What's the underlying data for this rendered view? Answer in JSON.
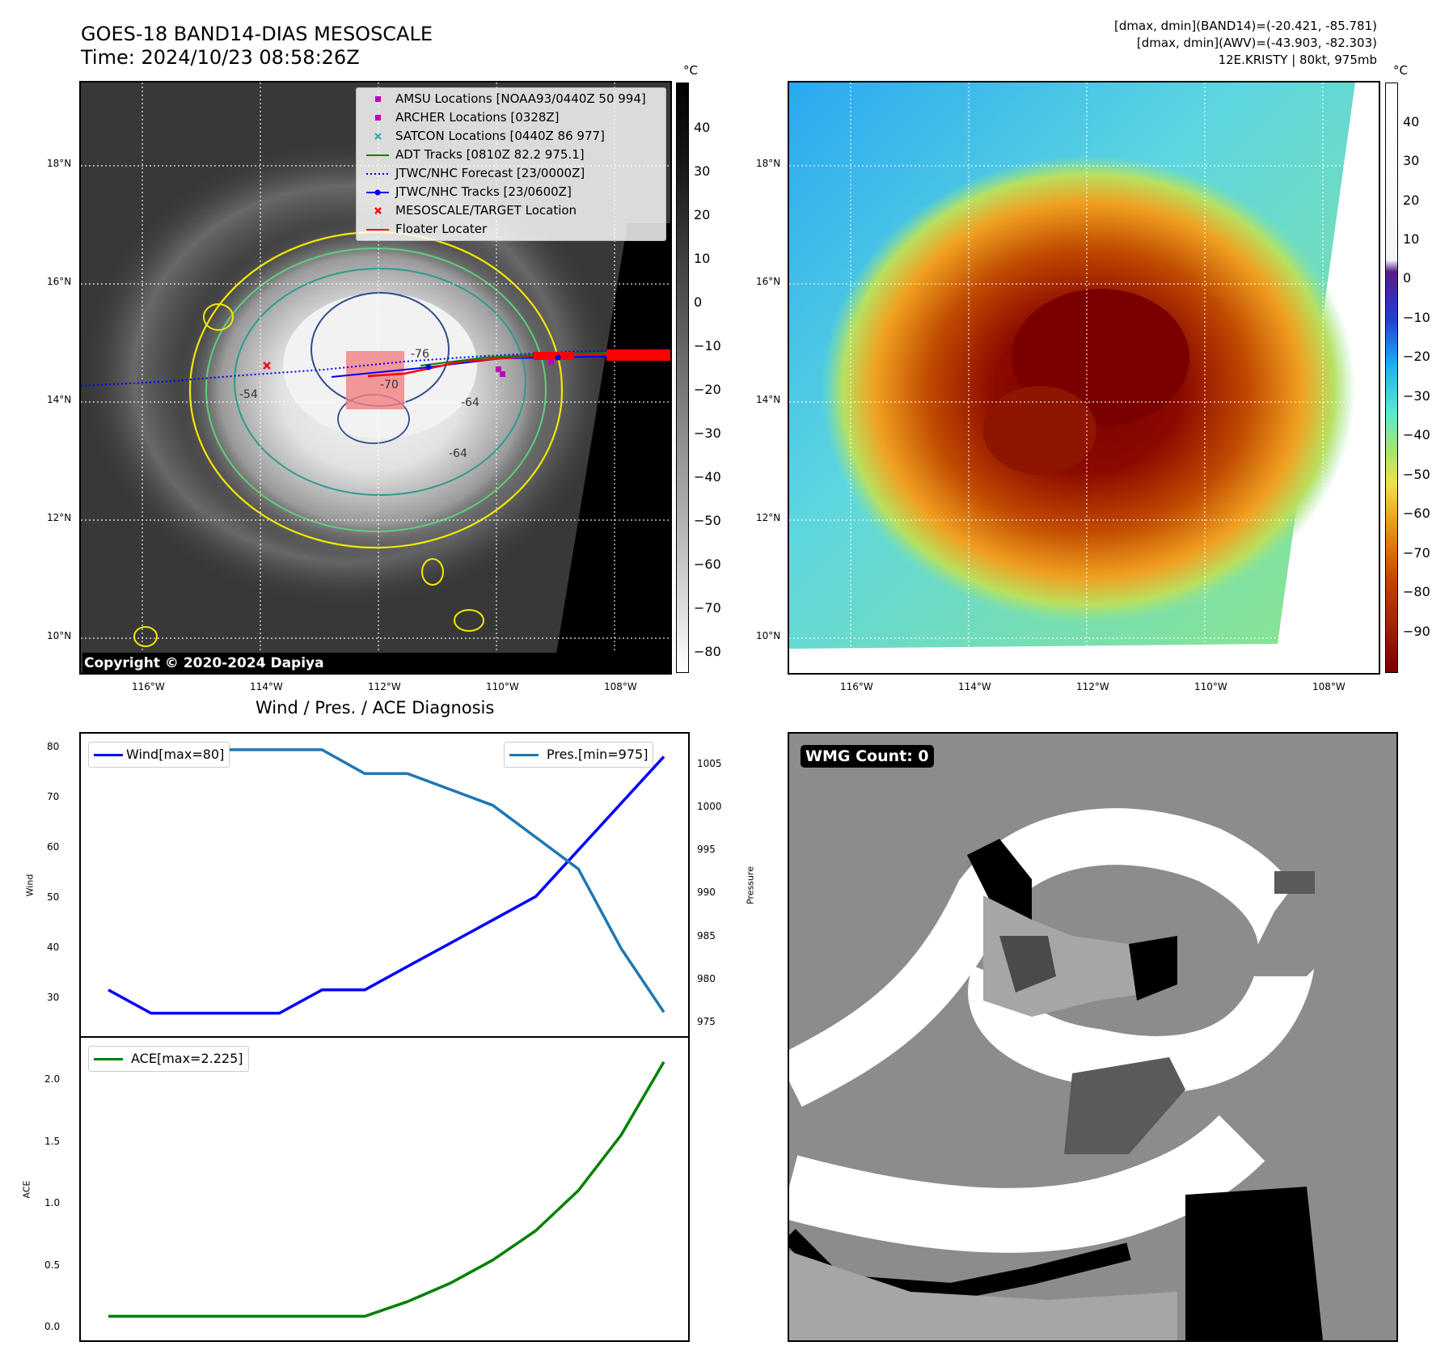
{
  "header": {
    "title_line1": "GOES-18 BAND14-DIAS MESOSCALE",
    "title_line2": "Time: 2024/10/23 08:58:26Z",
    "info_line1": "[dmax, dmin](BAND14)=(-20.421, -85.781)",
    "info_line2": "[dmax, dmin](AWV)=(-43.903, -82.303)",
    "info_line3": "12E.KRISTY | 80kt, 975mb"
  },
  "map": {
    "lat_labels": [
      "18°N",
      "16°N",
      "14°N",
      "12°N",
      "10°N"
    ],
    "lon_labels": [
      "116°W",
      "114°W",
      "112°W",
      "110°W",
      "108°W"
    ],
    "colorbar_unit": "°C",
    "gray_colorbar_ticks": [
      "40",
      "30",
      "20",
      "10",
      "0",
      "−10",
      "−20",
      "−30",
      "−40",
      "−50",
      "−60",
      "−70",
      "−80"
    ],
    "color_colorbar_ticks": [
      "40",
      "30",
      "20",
      "10",
      "0",
      "−10",
      "−20",
      "−30",
      "−40",
      "−50",
      "−60",
      "−70",
      "−80",
      "−90"
    ],
    "copyright": "Copyright © 2020-2024 Dapiya",
    "contour_labels": [
      "-76",
      "-70",
      "-64",
      "-64",
      "-54"
    ],
    "legend": [
      {
        "label": "AMSU Locations [NOAA93/0440Z 50 994]",
        "marker": "square",
        "color": "#c000c0"
      },
      {
        "label": "ARCHER Locations [0328Z]",
        "marker": "square",
        "color": "#c000c0"
      },
      {
        "label": "SATCON Locations [0440Z 86 977]",
        "marker": "x",
        "color": "#20b2aa"
      },
      {
        "label": "ADT Tracks [0810Z 82.2 975.1]",
        "marker": "line",
        "color": "#008000"
      },
      {
        "label": "JTWC/NHC Forecast [23/0000Z]",
        "marker": "dotted",
        "color": "#0000ff"
      },
      {
        "label": "JTWC/NHC Tracks [23/0600Z]",
        "marker": "line-dot",
        "color": "#0000ff"
      },
      {
        "label": "MESOSCALE/TARGET Location",
        "marker": "x",
        "color": "#ff0000"
      },
      {
        "label": "Floater Locater",
        "marker": "line",
        "color": "#ff0000"
      }
    ]
  },
  "diagnosis": {
    "title": "Wind / Pres. / ACE Diagnosis",
    "wind_axis_label": "Wind",
    "pressure_axis_label": "Pressure",
    "ace_axis_label": "ACE",
    "wind_legend": "Wind[max=80]",
    "pres_legend": "Pres.[min=975]",
    "ace_legend": "ACE[max=2.225]",
    "wind_ticks": [
      "80",
      "70",
      "60",
      "50",
      "40",
      "30"
    ],
    "pres_ticks": [
      "1005",
      "1000",
      "995",
      "990",
      "985",
      "980",
      "975"
    ],
    "ace_ticks": [
      "2.0",
      "1.5",
      "1.0",
      "0.5",
      "0.0"
    ]
  },
  "wmg": {
    "label": "WMG Count: 0"
  },
  "chart_data": [
    {
      "type": "line",
      "title": "Wind / Pres. / ACE Diagnosis",
      "x": [
        0,
        1,
        2,
        3,
        4,
        5,
        6,
        7,
        8,
        9,
        10,
        11,
        12,
        13
      ],
      "series": [
        {
          "name": "Wind[max=80]",
          "axis": "left",
          "color": "#0000ff",
          "values": [
            30,
            25,
            25,
            25,
            25,
            30,
            30,
            35,
            40,
            45,
            50,
            60,
            70,
            80
          ]
        },
        {
          "name": "Pres.[min=975]",
          "axis": "right",
          "color": "#1f77b4",
          "values": [
            1007,
            1007,
            1008,
            1008,
            1008,
            1008,
            1005,
            1005,
            1003,
            1001,
            997,
            993,
            983,
            975
          ]
        }
      ],
      "ylabel": "Wind",
      "y2label": "Pressure",
      "ylim": [
        22.5,
        82.5
      ],
      "y2lim": [
        973.4,
        1008.6
      ]
    },
    {
      "type": "line",
      "x": [
        0,
        1,
        2,
        3,
        4,
        5,
        6,
        7,
        8,
        9,
        10,
        11,
        12,
        13
      ],
      "series": [
        {
          "name": "ACE[max=2.225]",
          "color": "#008000",
          "values": [
            0,
            0,
            0,
            0,
            0,
            0,
            0,
            0.128,
            0.289,
            0.492,
            0.748,
            1.1,
            1.585,
            2.225
          ]
        }
      ],
      "ylabel": "ACE",
      "ylim": [
        -0.111,
        2.336
      ]
    }
  ]
}
